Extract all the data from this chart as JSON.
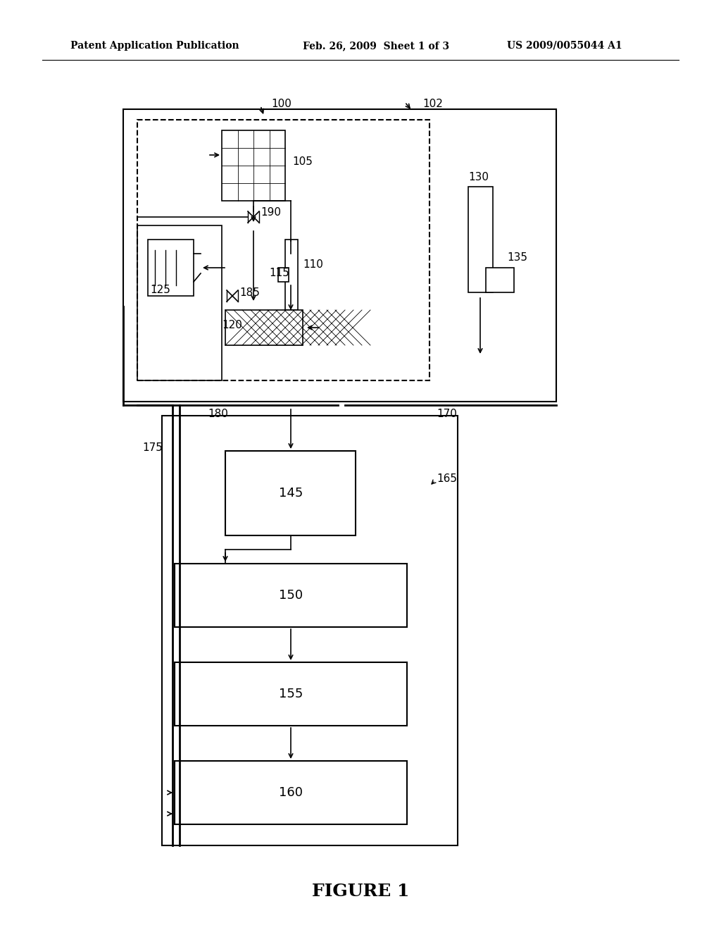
{
  "bg_color": "#ffffff",
  "header_left": "Patent Application Publication",
  "header_mid": "Feb. 26, 2009  Sheet 1 of 3",
  "header_right": "US 2009/0055044 A1",
  "figure_label": "FIGURE 1",
  "label_100": "100",
  "label_102": "102",
  "label_105": "105",
  "label_110": "110",
  "label_115": "115",
  "label_120": "120",
  "label_125": "125",
  "label_130": "130",
  "label_135": "135",
  "label_145": "145",
  "label_150": "150",
  "label_155": "155",
  "label_160": "160",
  "label_165": "165",
  "label_170": "170",
  "label_175": "175",
  "label_180": "180",
  "label_185": "185",
  "label_190": "190"
}
